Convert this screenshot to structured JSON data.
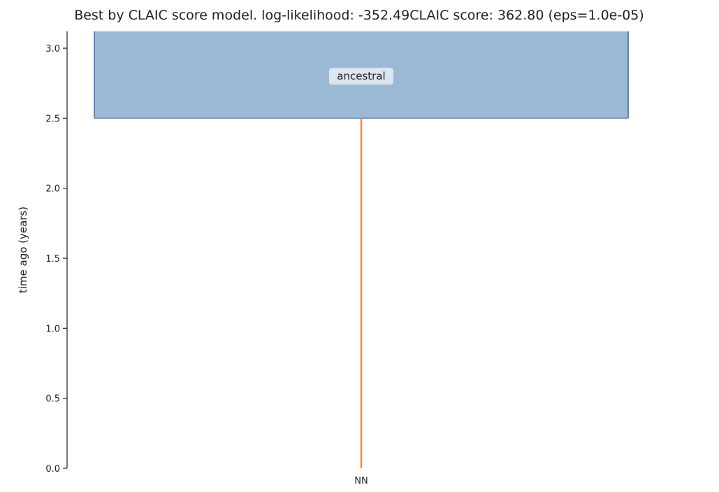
{
  "chart_data": {
    "type": "demography",
    "title": "Best by CLAIC score model. log-likelihood: -352.49CLAIC score: 362.80 (eps=1.0e-05)",
    "ylabel": "time ago (years)",
    "ylim": [
      0,
      3.12
    ],
    "y_ticks": [
      0.0,
      0.5,
      1.0,
      1.5,
      2.0,
      2.5,
      3.0
    ],
    "y_tick_labels": [
      "0.0",
      "0.5",
      "1.0",
      "1.5",
      "2.0",
      "2.5",
      "3.0"
    ],
    "grid": false,
    "populations": [
      {
        "name": "ancestral",
        "label": "ancestral",
        "start_time": 2.5,
        "end_time": 3.12,
        "color": "#9bb8d5",
        "edge_color": "#5f86b3"
      },
      {
        "name": "NN",
        "label": "NN",
        "start_time": 0.0,
        "end_time": 2.5,
        "color": "#ee8a4a"
      }
    ]
  }
}
